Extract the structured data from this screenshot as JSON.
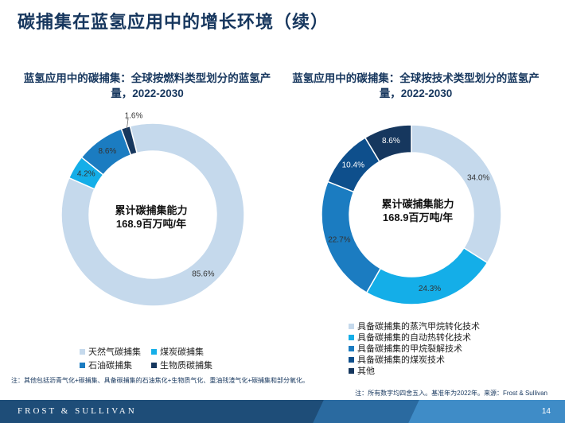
{
  "page_title": "碳捕集在蓝氢应用中的增长环境（续）",
  "chart_data": [
    {
      "type": "pie",
      "title": "蓝氢应用中的碳捕集：全球按燃料类型划分的蓝氢产量，2022-2030",
      "center_text": [
        "累计碳捕集能力",
        "168.9百万吨/年"
      ],
      "categories": [
        "天然气碳捕集",
        "煤炭碳捕集",
        "石油碳捕集",
        "生物质碳捕集"
      ],
      "values": [
        85.6,
        4.2,
        8.6,
        1.6
      ],
      "labels": [
        "85.6%",
        "4.2%",
        "8.6%",
        "1.6%"
      ],
      "colors": [
        "#c5d9ec",
        "#14aee8",
        "#1b7cc1",
        "#16375e"
      ],
      "legend_position": "bottom"
    },
    {
      "type": "pie",
      "title": "蓝氢应用中的碳捕集：全球按技术类型划分的蓝氢产量，2022-2030",
      "center_text": [
        "累计碳捕集能力",
        "168.9百万吨/年"
      ],
      "categories": [
        "具备碳捕集的蒸汽甲烷转化技术",
        "具备碳捕集的自动热转化技术",
        "具备碳捕集的甲烷裂解技术",
        "具备碳捕集的煤炭技术",
        "其他"
      ],
      "values": [
        34.0,
        24.3,
        22.7,
        10.4,
        8.6
      ],
      "labels": [
        "34.0%",
        "24.3%",
        "22.7%",
        "10.4%",
        "8.6%"
      ],
      "colors": [
        "#c5d9ec",
        "#14aee8",
        "#1b7cc1",
        "#0e4f8c",
        "#16375e"
      ],
      "legend_position": "bottom"
    }
  ],
  "footnotes": {
    "note1": "注：其他包括沥青气化+碳捕集、具备碳捕集的石油焦化+生物质气化、重油残渣气化+碳捕集和部分氧化。",
    "note2": "注：所有数字均四舍五入。基准年为2022年。来源：Frost & Sullivan"
  },
  "footer": {
    "brand": "FROST & SULLIVAN",
    "page_number": "14"
  }
}
